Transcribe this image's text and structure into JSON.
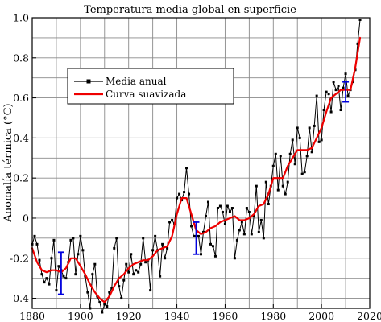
{
  "chart_data": {
    "type": "line",
    "title": "Temperatura media global en superficie",
    "xlabel": "",
    "ylabel": "Anomalía térmica (°C)",
    "xlim": [
      1880,
      2020
    ],
    "ylim": [
      -0.45,
      1.0
    ],
    "xticks": [
      1880,
      1900,
      1920,
      1940,
      1960,
      1980,
      2000,
      2020
    ],
    "yticks": [
      -0.4,
      -0.2,
      0,
      0.2,
      0.4,
      0.6,
      0.8,
      1.0
    ],
    "xtick_labels": [
      "1880",
      "1900",
      "1920",
      "1940",
      "1960",
      "1980",
      "2000",
      "2020"
    ],
    "ytick_labels": [
      "-0.4",
      "-0.2",
      "0",
      "0.2",
      "0.4",
      "0.6",
      "0.8",
      "1.0"
    ],
    "grid": true,
    "legend_position": "upper-left",
    "series": [
      {
        "name": "Media anual",
        "color": "#000000",
        "marker": "square",
        "x": [
          1880,
          1881,
          1882,
          1883,
          1884,
          1885,
          1886,
          1887,
          1888,
          1889,
          1890,
          1891,
          1892,
          1893,
          1894,
          1895,
          1896,
          1897,
          1898,
          1899,
          1900,
          1901,
          1902,
          1903,
          1904,
          1905,
          1906,
          1907,
          1908,
          1909,
          1910,
          1911,
          1912,
          1913,
          1914,
          1915,
          1916,
          1917,
          1918,
          1919,
          1920,
          1921,
          1922,
          1923,
          1924,
          1925,
          1926,
          1927,
          1928,
          1929,
          1930,
          1931,
          1932,
          1933,
          1934,
          1935,
          1936,
          1937,
          1938,
          1939,
          1940,
          1941,
          1942,
          1943,
          1944,
          1945,
          1946,
          1947,
          1948,
          1949,
          1950,
          1951,
          1952,
          1953,
          1954,
          1955,
          1956,
          1957,
          1958,
          1959,
          1960,
          1961,
          1962,
          1963,
          1964,
          1965,
          1966,
          1967,
          1968,
          1969,
          1970,
          1971,
          1972,
          1973,
          1974,
          1975,
          1976,
          1977,
          1978,
          1979,
          1980,
          1981,
          1982,
          1983,
          1984,
          1985,
          1986,
          1987,
          1988,
          1989,
          1990,
          1991,
          1992,
          1993,
          1994,
          1995,
          1996,
          1997,
          1998,
          1999,
          2000,
          2001,
          2002,
          2003,
          2004,
          2005,
          2006,
          2007,
          2008,
          2009,
          2010,
          2011,
          2012,
          2013,
          2014,
          2015,
          2016
        ],
        "values": [
          -0.13,
          -0.09,
          -0.13,
          -0.21,
          -0.28,
          -0.32,
          -0.3,
          -0.33,
          -0.2,
          -0.11,
          -0.36,
          -0.24,
          -0.26,
          -0.29,
          -0.3,
          -0.22,
          -0.11,
          -0.1,
          -0.28,
          -0.18,
          -0.09,
          -0.16,
          -0.29,
          -0.37,
          -0.45,
          -0.28,
          -0.23,
          -0.39,
          -0.42,
          -0.47,
          -0.43,
          -0.44,
          -0.37,
          -0.35,
          -0.15,
          -0.1,
          -0.34,
          -0.4,
          -0.31,
          -0.23,
          -0.27,
          -0.18,
          -0.28,
          -0.26,
          -0.27,
          -0.23,
          -0.1,
          -0.22,
          -0.21,
          -0.36,
          -0.16,
          -0.09,
          -0.16,
          -0.29,
          -0.13,
          -0.2,
          -0.15,
          -0.02,
          -0.01,
          -0.03,
          0.1,
          0.12,
          0.09,
          0.13,
          0.25,
          0.12,
          -0.04,
          -0.09,
          -0.09,
          -0.09,
          -0.18,
          -0.07,
          0.01,
          0.08,
          -0.13,
          -0.14,
          -0.19,
          0.05,
          0.06,
          0.03,
          -0.03,
          0.06,
          0.03,
          0.05,
          -0.2,
          -0.11,
          -0.06,
          -0.02,
          -0.08,
          0.05,
          0.03,
          -0.08,
          0.01,
          0.16,
          -0.07,
          -0.01,
          -0.1,
          0.18,
          0.07,
          0.16,
          0.26,
          0.32,
          0.14,
          0.31,
          0.16,
          0.12,
          0.18,
          0.32,
          0.39,
          0.27,
          0.45,
          0.4,
          0.22,
          0.23,
          0.31,
          0.45,
          0.33,
          0.46,
          0.61,
          0.38,
          0.39,
          0.54,
          0.63,
          0.62,
          0.53,
          0.68,
          0.64,
          0.66,
          0.54,
          0.65,
          0.72,
          0.61,
          0.64,
          0.68,
          0.74,
          0.87,
          0.99
        ]
      },
      {
        "name": "Curva suavizada",
        "color": "#ee0000",
        "x": [
          1880,
          1882,
          1884,
          1886,
          1888,
          1890,
          1892,
          1894,
          1896,
          1898,
          1900,
          1902,
          1904,
          1906,
          1908,
          1910,
          1912,
          1914,
          1916,
          1918,
          1920,
          1922,
          1924,
          1926,
          1928,
          1930,
          1932,
          1934,
          1936,
          1938,
          1940,
          1942,
          1944,
          1946,
          1948,
          1950,
          1952,
          1954,
          1956,
          1958,
          1960,
          1962,
          1964,
          1966,
          1968,
          1970,
          1972,
          1974,
          1976,
          1978,
          1980,
          1982,
          1984,
          1986,
          1988,
          1990,
          1992,
          1994,
          1996,
          1998,
          2000,
          2002,
          2004,
          2006,
          2008,
          2010,
          2012,
          2014,
          2016
        ],
        "values": [
          -0.15,
          -0.22,
          -0.26,
          -0.27,
          -0.26,
          -0.26,
          -0.27,
          -0.25,
          -0.2,
          -0.2,
          -0.24,
          -0.28,
          -0.33,
          -0.37,
          -0.4,
          -0.42,
          -0.39,
          -0.34,
          -0.3,
          -0.28,
          -0.25,
          -0.23,
          -0.22,
          -0.21,
          -0.21,
          -0.19,
          -0.16,
          -0.15,
          -0.14,
          -0.09,
          0.02,
          0.1,
          0.1,
          0.02,
          -0.06,
          -0.08,
          -0.07,
          -0.05,
          -0.04,
          -0.02,
          -0.01,
          0.0,
          0.01,
          -0.01,
          -0.01,
          0.0,
          0.02,
          0.06,
          0.07,
          0.12,
          0.2,
          0.2,
          0.2,
          0.26,
          0.3,
          0.34,
          0.34,
          0.34,
          0.35,
          0.4,
          0.45,
          0.53,
          0.6,
          0.62,
          0.64,
          0.64,
          0.64,
          0.75,
          0.9
        ]
      }
    ],
    "error_bars": [
      {
        "x": 1892,
        "low": -0.38,
        "high": -0.17,
        "color": "#0000dd"
      },
      {
        "x": 1948,
        "low": -0.18,
        "high": -0.02,
        "color": "#0000dd"
      },
      {
        "x": 2010,
        "low": 0.58,
        "high": 0.68,
        "color": "#0000dd"
      }
    ]
  }
}
